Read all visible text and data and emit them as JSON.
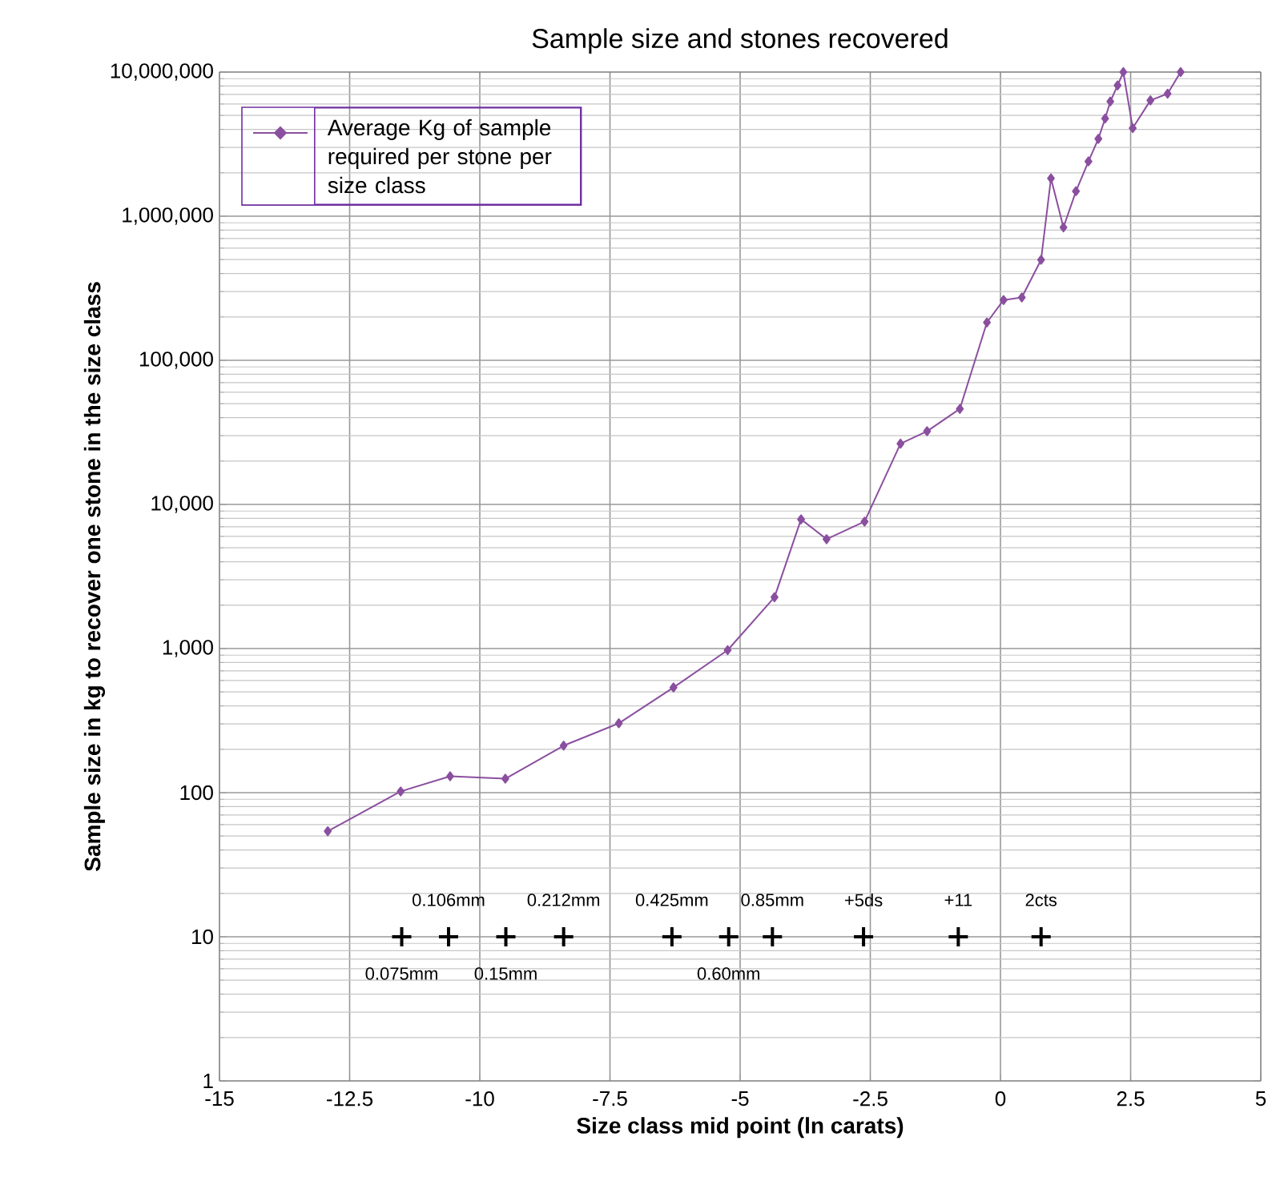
{
  "chart_data": {
    "type": "line",
    "title": "Sample size and stones recovered",
    "xlabel": "Size class mid point (ln carats)",
    "ylabel": "Sample size in kg to recover one stone in the size class",
    "log": true,
    "grid": true,
    "legend": "top left",
    "xlim": [
      -15,
      5
    ],
    "xticks": [
      -15,
      -12.5,
      -10,
      -7.5,
      -5,
      -2.5,
      0,
      2.5,
      5
    ],
    "ylim": [
      1,
      10000000
    ],
    "yticks": [
      {
        "value": 1,
        "label": "1"
      },
      {
        "value": 10,
        "label": "10"
      },
      {
        "value": 100,
        "label": "100"
      },
      {
        "value": 1000,
        "label": "1,000"
      },
      {
        "value": 10000,
        "label": "10,000"
      },
      {
        "value": 100000,
        "label": "100,000"
      },
      {
        "value": 1000000,
        "label": "1,000,000"
      },
      {
        "value": 10000000,
        "label": "10,000,000"
      }
    ],
    "series": [
      {
        "name": "Average Kg of sample required per stone per size class",
        "type": "line",
        "color": "#8b4f9f",
        "marker": "diamond",
        "line_style": "solid",
        "x": [
          -12.92,
          -11.52,
          -10.57,
          -9.51,
          -8.39,
          -7.33,
          -6.28,
          -5.24,
          -4.34,
          -3.83,
          -3.34,
          -2.61,
          -1.92,
          -1.41,
          -0.78,
          -0.26,
          0.06,
          0.41,
          0.78,
          0.97,
          1.21,
          1.45,
          1.69,
          1.88,
          2.01,
          2.11,
          2.25,
          2.36,
          2.54,
          2.88,
          3.21,
          3.46
        ],
        "values": [
          54,
          102,
          130,
          125,
          212,
          303,
          537,
          975,
          2270,
          7880,
          5740,
          7600,
          26400,
          32200,
          46000,
          183000,
          262000,
          273000,
          498000,
          1830000,
          836000,
          1490000,
          2400000,
          3440000,
          4760000,
          6250000,
          8080000,
          10000000,
          4080000,
          6360000,
          7080000,
          10000000
        ]
      },
      {
        "type": "scatter",
        "color": "#000000",
        "marker": "cross",
        "x": [
          -11.5,
          -10.6,
          -9.5,
          -8.39,
          -6.31,
          -5.22,
          -4.38,
          -2.63,
          -0.81,
          0.78
        ],
        "values": [
          10,
          10,
          10,
          10,
          10,
          10,
          10,
          10,
          10,
          10
        ]
      }
    ],
    "annotations": [
      {
        "text": "0.075mm",
        "x": -11.5,
        "y": 10
      },
      {
        "text": "0.106mm",
        "x": -10.6,
        "y": 10
      },
      {
        "text": "0.15mm",
        "x": -9.5,
        "y": 10
      },
      {
        "text": "0.212mm",
        "x": -8.39,
        "y": 10
      },
      {
        "text": "0.425mm",
        "x": -6.31,
        "y": 10
      },
      {
        "text": "0.60mm",
        "x": -5.22,
        "y": 10
      },
      {
        "text": "0.85mm",
        "x": -4.38,
        "y": 10
      },
      {
        "text": "+5ds",
        "x": -2.63,
        "y": 10
      },
      {
        "text": "+11",
        "x": -0.81,
        "y": 10
      },
      {
        "text": "2cts",
        "x": 0.78,
        "y": 10
      }
    ]
  }
}
